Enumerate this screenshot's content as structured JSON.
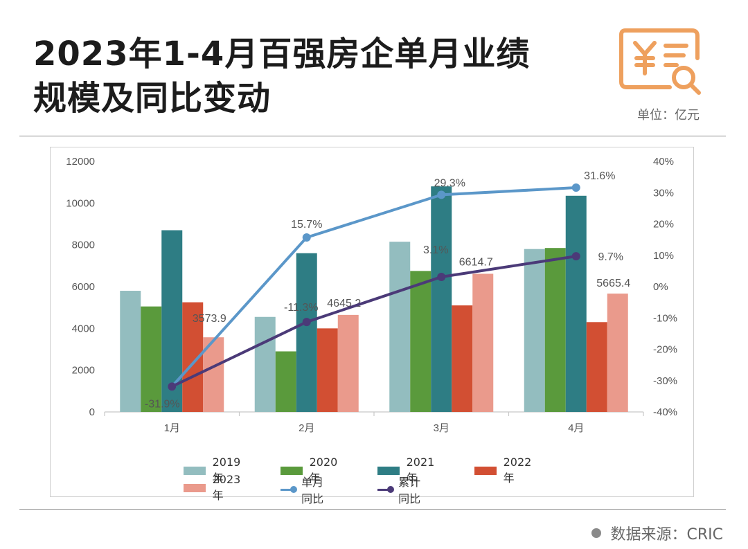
{
  "header": {
    "title_line1": "2023年1-4月百强房企单月业绩",
    "title_line2": "规模及同比变动",
    "unit": "单位：亿元"
  },
  "footer": {
    "source": "数据来源：CRIC"
  },
  "colors": {
    "s2019": "#93bdbf",
    "s2020": "#5a9a3c",
    "s2021": "#2e7d84",
    "s2022": "#d24f33",
    "s2023": "#ea9a8c",
    "monthly_yoy": "#5b97c9",
    "cumulative_yoy": "#4b3a78",
    "logo": "#eea05e"
  },
  "chart_data": {
    "type": "bar",
    "categories": [
      "1月",
      "2月",
      "3月",
      "4月"
    ],
    "series": [
      {
        "name": "2019年",
        "type": "bar",
        "axis": "left",
        "values": [
          5800,
          4550,
          8150,
          7800
        ]
      },
      {
        "name": "2020年",
        "type": "bar",
        "axis": "left",
        "values": [
          5050,
          2900,
          6750,
          7850
        ]
      },
      {
        "name": "2021年",
        "type": "bar",
        "axis": "left",
        "values": [
          8700,
          7600,
          10800,
          10350
        ]
      },
      {
        "name": "2022年",
        "type": "bar",
        "axis": "left",
        "values": [
          5250,
          4000,
          5100,
          4300
        ]
      },
      {
        "name": "2023年",
        "type": "bar",
        "axis": "left",
        "values": [
          3573.9,
          4645.2,
          6614.7,
          5665.4
        ],
        "labels": [
          "3573.9",
          "4645.2",
          "6614.7",
          "5665.4"
        ]
      },
      {
        "name": "单月同比",
        "type": "line",
        "axis": "right",
        "values": [
          -31.9,
          15.7,
          29.3,
          31.6
        ],
        "labels": [
          "-31.9%",
          "15.7%",
          "29.3%",
          "31.6%"
        ]
      },
      {
        "name": "累计同比",
        "type": "line",
        "axis": "right",
        "values": [
          -31.9,
          -11.3,
          3.1,
          9.7
        ],
        "labels": [
          "",
          "-11.3%",
          "3.1%",
          "9.7%"
        ]
      }
    ],
    "y_left": {
      "min": 0,
      "max": 12000,
      "ticks": [
        "0",
        "2000",
        "4000",
        "6000",
        "8000",
        "10000",
        "12000"
      ]
    },
    "y_right": {
      "min": -40,
      "max": 40,
      "ticks": [
        "-40%",
        "-30%",
        "-20%",
        "-10%",
        "0%",
        "10%",
        "20%",
        "30%",
        "40%"
      ]
    },
    "grid": false,
    "legend_position": "bottom"
  }
}
